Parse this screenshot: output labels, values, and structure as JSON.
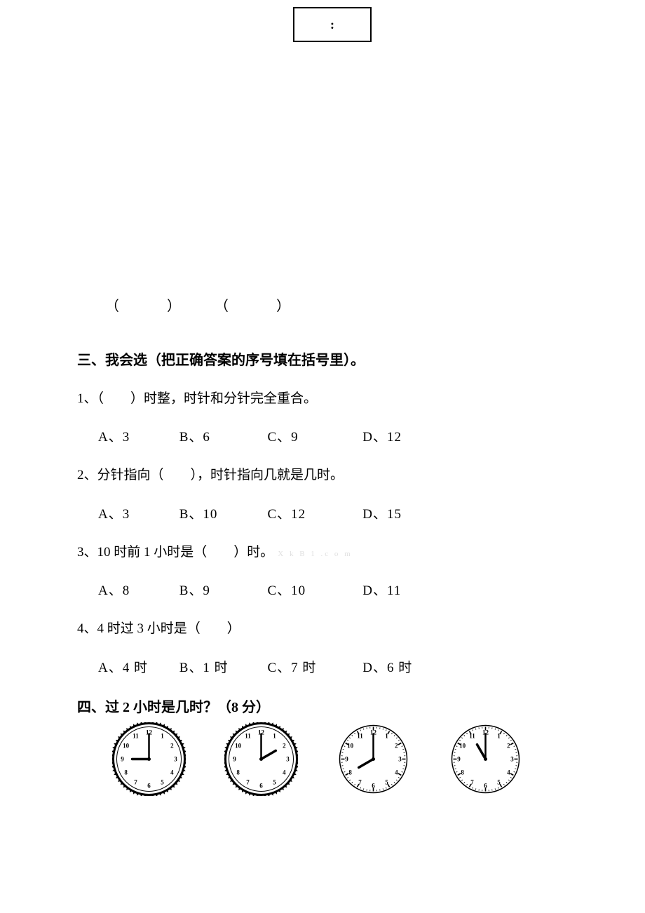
{
  "topBox": {
    "label": ":"
  },
  "parensRow": "（　　　）　　　（　　　）",
  "section3": {
    "heading": "三、我会选（把正确答案的序号填在括号里）。",
    "q1": {
      "text": "1、（　　）时整，时针和分针完全重合。",
      "A": "A、3",
      "B": "B、6",
      "C": "C、9",
      "D": "D、12"
    },
    "q2": {
      "text": "2、分针指向（　　），时针指向几就是几时。",
      "A": "A、3",
      "B": "B、10",
      "C": "C、12",
      "D": "D、15"
    },
    "q3": {
      "text": "3、10 时前 1 小时是（　　）时。",
      "watermark": "X k B 1 .c o m",
      "A": "A、8",
      "B": "B、9",
      "C": "C、10",
      "D": "D、11"
    },
    "q4": {
      "text": "4、4 时过 3 小时是（　　）",
      "A": "A、4 时",
      "B": "B、1 时",
      "C": "C、7 时",
      "D": "D、6 时"
    }
  },
  "section4": {
    "heading": "四、过 2 小时是几时？（8 分）"
  },
  "clocks": [
    {
      "hour": 9,
      "minute": 0,
      "style": "fancy",
      "face_color": "#ffffff",
      "tick_color": "#000000",
      "number_color": "#000000",
      "hand_color": "#000000"
    },
    {
      "hour": 2,
      "minute": 0,
      "style": "fancy",
      "face_color": "#ffffff",
      "tick_color": "#000000",
      "number_color": "#000000",
      "hand_color": "#000000"
    },
    {
      "hour": 8,
      "minute": 0,
      "style": "dotted",
      "face_color": "#ffffff",
      "tick_color": "#000000",
      "number_color": "#000000",
      "hand_color": "#000000"
    },
    {
      "hour": 11,
      "minute": 0,
      "style": "dotted",
      "face_color": "#ffffff",
      "tick_color": "#000000",
      "number_color": "#000000",
      "hand_color": "#000000"
    }
  ],
  "clock_geometry": {
    "size": 105,
    "radius": 48,
    "number_radius": 38,
    "hour_hand_len": 24,
    "minute_hand_len": 36,
    "font_size": 9
  }
}
